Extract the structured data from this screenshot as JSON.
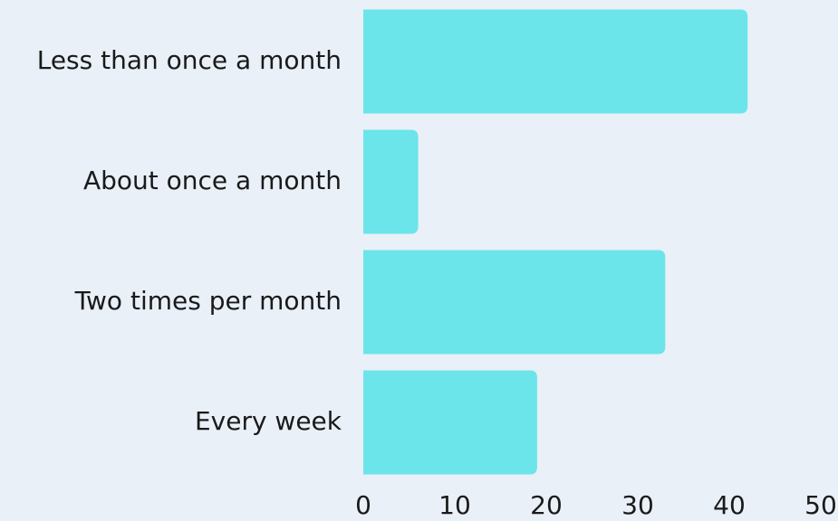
{
  "chart_data": {
    "type": "barh",
    "categories": [
      "Less than once a month",
      "About once a month",
      "Two times per month",
      "Every week"
    ],
    "values": [
      42,
      6,
      33,
      19
    ],
    "color": "#6be5ea",
    "xlim": [
      0,
      50
    ],
    "xticks": [
      0,
      10,
      20,
      30,
      40,
      50
    ],
    "grid": false
  }
}
